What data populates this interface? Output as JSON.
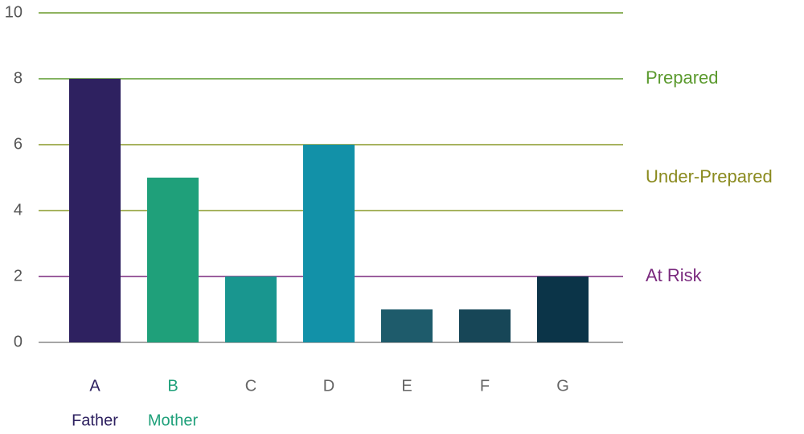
{
  "chart_data": {
    "type": "bar",
    "categories": [
      "A",
      "B",
      "C",
      "D",
      "E",
      "F",
      "G"
    ],
    "category_colors": [
      "#2e2160",
      "#1fa07a",
      "#666666",
      "#666666",
      "#666666",
      "#666666",
      "#666666"
    ],
    "sublabels": [
      "Father",
      "Mother",
      null,
      null,
      null,
      null,
      null
    ],
    "values": [
      8,
      5,
      2,
      6,
      1,
      1,
      2
    ],
    "colors": [
      "#2e2160",
      "#1fa07a",
      "#19968f",
      "#1291a8",
      "#1e5b6b",
      "#174657",
      "#0b3448"
    ],
    "ylim": [
      0,
      10
    ],
    "yticks": [
      0,
      2,
      4,
      6,
      8,
      10
    ],
    "grid": true,
    "grid_colors": [
      "#888888",
      "#7a2a7e",
      "#8a9a2a",
      "#8a9a2a",
      "#5b9a2e",
      "#6a9a2a"
    ],
    "zones": [
      {
        "label": "Prepared",
        "value": 8,
        "color": "#5b9a2e"
      },
      {
        "label": "Under-Prepared",
        "value": 5,
        "color": "#8a8a1e"
      },
      {
        "label": "At Risk",
        "value": 2,
        "color": "#7a2a7e"
      }
    ]
  }
}
